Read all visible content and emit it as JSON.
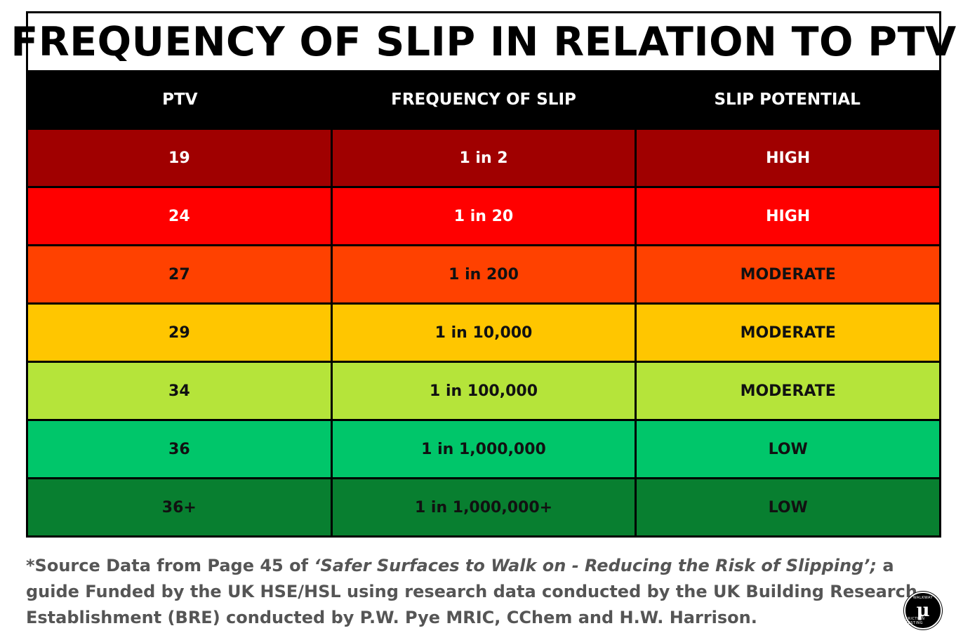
{
  "title": "FREQUENCY OF SLIP IN RELATION TO PTV",
  "table": {
    "headers": [
      "PTV",
      "FREQUENCY OF SLIP",
      "SLIP POTENTIAL"
    ],
    "rows": [
      {
        "ptv": "19",
        "frequency": "1 in 2",
        "potential": "HIGH",
        "color": "#a00000"
      },
      {
        "ptv": "24",
        "frequency": "1 in 20",
        "potential": "HIGH",
        "color": "#ff0000"
      },
      {
        "ptv": "27",
        "frequency": "1 in 200",
        "potential": "MODERATE",
        "color": "#ff4100"
      },
      {
        "ptv": "29",
        "frequency": "1 in 10,000",
        "potential": "MODERATE",
        "color": "#ffc600"
      },
      {
        "ptv": "34",
        "frequency": "1 in 100,000",
        "potential": "MODERATE",
        "color": "#b5e43a"
      },
      {
        "ptv": "36",
        "frequency": "1 in 1,000,000",
        "potential": "LOW",
        "color": "#00c66a"
      },
      {
        "ptv": "36+",
        "frequency": "1 in 1,000,000+",
        "potential": "LOW",
        "color": "#087f30"
      }
    ]
  },
  "footnote": {
    "prefix": "*Source Data from Page 45 of ",
    "italic": "‘Safer Surfaces to Walk on - Reducing the Risk of Slipping’;",
    "suffix": " a guide Funded by the UK HSE/HSL using research data conducted by the UK Building Research Establishment (BRE) conducted by P.W. Pye MRIC, CChem and H.W. Harrison."
  },
  "logo": {
    "icon": "mu-logo-icon",
    "symbol": "μ",
    "ring_top": "WALKWAY",
    "ring_bottom": "FRICTION TESTING"
  }
}
